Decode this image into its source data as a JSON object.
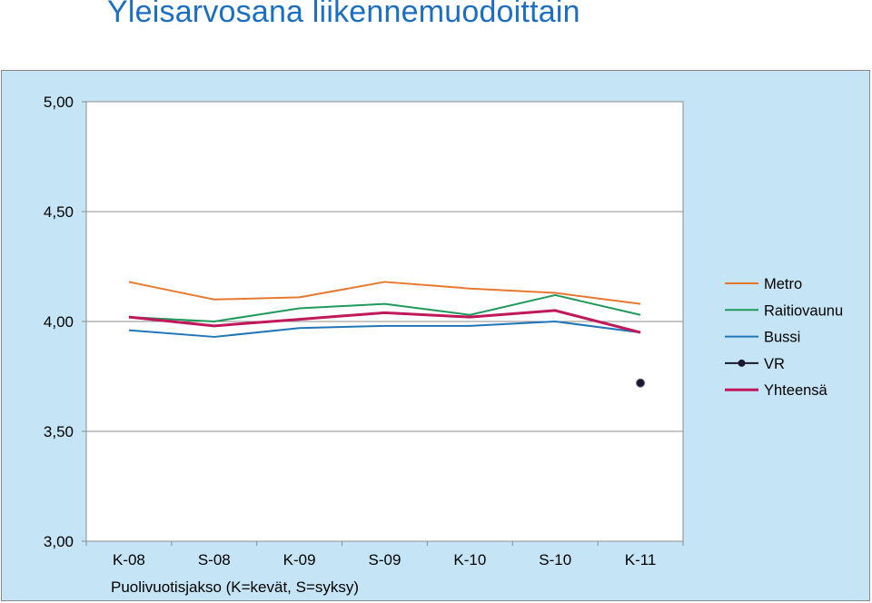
{
  "page": {
    "title": "Yleisarvosana liikennemuodoittain"
  },
  "chart_data": {
    "type": "line",
    "title": "Yleisarvosana liikennemuodoittain",
    "xlabel": "Puolivuotisjakso (K=kevät, S=syksy)",
    "ylabel": "",
    "categories": [
      "K-08",
      "S-08",
      "K-09",
      "S-09",
      "K-10",
      "S-10",
      "K-11"
    ],
    "y_ticks": [
      "3,00",
      "3,50",
      "4,00",
      "4,50",
      "5,00"
    ],
    "ylim": [
      3.0,
      5.0
    ],
    "grid": true,
    "legend_position": "right",
    "series": [
      {
        "name": "Metro",
        "color": "#e8782f",
        "values": [
          4.18,
          4.1,
          4.11,
          4.18,
          4.15,
          4.13,
          4.08
        ]
      },
      {
        "name": "Raitiovaunu",
        "color": "#1f9a5c",
        "values": [
          4.02,
          4.0,
          4.06,
          4.08,
          4.03,
          4.12,
          4.03
        ]
      },
      {
        "name": "Bussi",
        "color": "#2176b8",
        "values": [
          3.96,
          3.93,
          3.97,
          3.98,
          3.98,
          4.0,
          3.95
        ]
      },
      {
        "name": "VR",
        "color": "#1a1a2e",
        "marker": true,
        "values": [
          null,
          null,
          null,
          null,
          null,
          null,
          3.72
        ]
      },
      {
        "name": "Yhteensä",
        "color": "#c0185a",
        "bold": true,
        "values": [
          4.02,
          3.98,
          4.01,
          4.04,
          4.02,
          4.05,
          3.95
        ]
      }
    ]
  }
}
